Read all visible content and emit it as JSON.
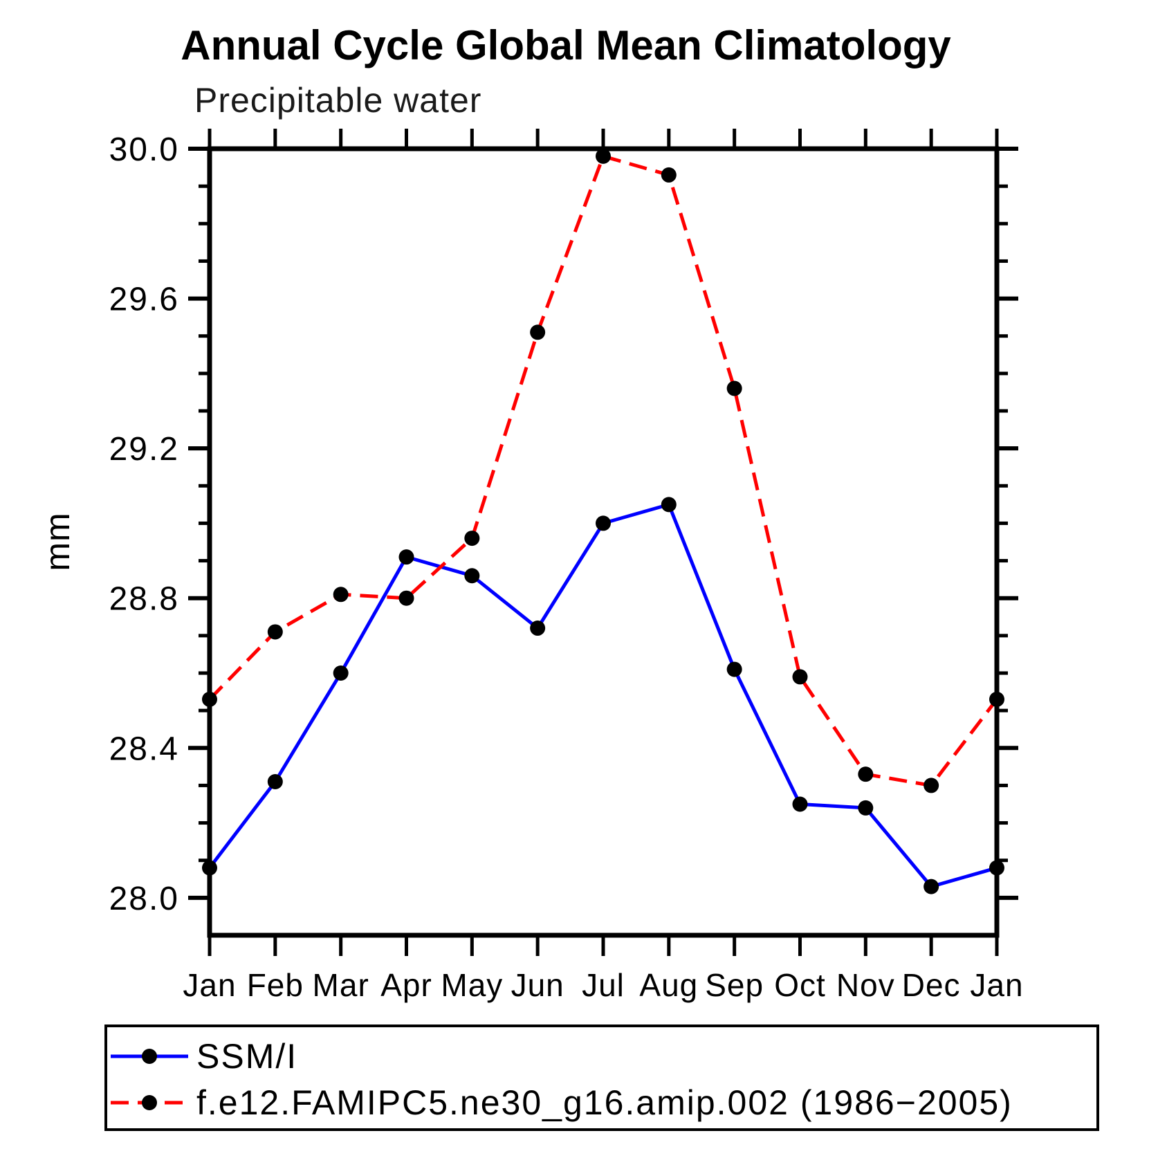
{
  "chart_data": {
    "type": "line",
    "title": "Annual Cycle Global Mean Climatology",
    "subtitle": "Precipitable water",
    "ylabel": "mm",
    "x_categories": [
      "Jan",
      "Feb",
      "Mar",
      "Apr",
      "May",
      "Jun",
      "Jul",
      "Aug",
      "Sep",
      "Oct",
      "Nov",
      "Dec",
      "Jan"
    ],
    "y_axis": {
      "frame_min": 27.9,
      "frame_max": 30.0,
      "major_ticks": [
        30.0,
        29.6,
        29.2,
        28.8,
        28.4,
        28.0
      ],
      "major_tick_labels": [
        "30.0",
        "29.6",
        "29.2",
        "28.8",
        "28.4",
        "28.0"
      ],
      "minor_step": 0.1
    },
    "grid": "off",
    "legend_position": "bottom-left-box",
    "colors": {
      "obs_line": "#0000FF",
      "model_line": "#FF0000",
      "marker": "#000000",
      "axis": "#000000"
    },
    "series": [
      {
        "name": "SSM/I",
        "style": "solid",
        "color": "#0000FF",
        "marker_color": "#000000",
        "values": [
          28.08,
          28.31,
          28.6,
          28.91,
          28.86,
          28.72,
          29.0,
          29.05,
          28.61,
          28.25,
          28.24,
          28.03,
          28.08
        ]
      },
      {
        "name": "f.e12.FAMIPC5.ne30_g16.amip.002 (1986−2005)",
        "style": "dashed",
        "color": "#FF0000",
        "marker_color": "#000000",
        "values": [
          28.53,
          28.71,
          28.81,
          28.8,
          28.96,
          29.51,
          29.98,
          29.93,
          29.36,
          28.59,
          28.33,
          28.3,
          28.53
        ]
      }
    ]
  }
}
